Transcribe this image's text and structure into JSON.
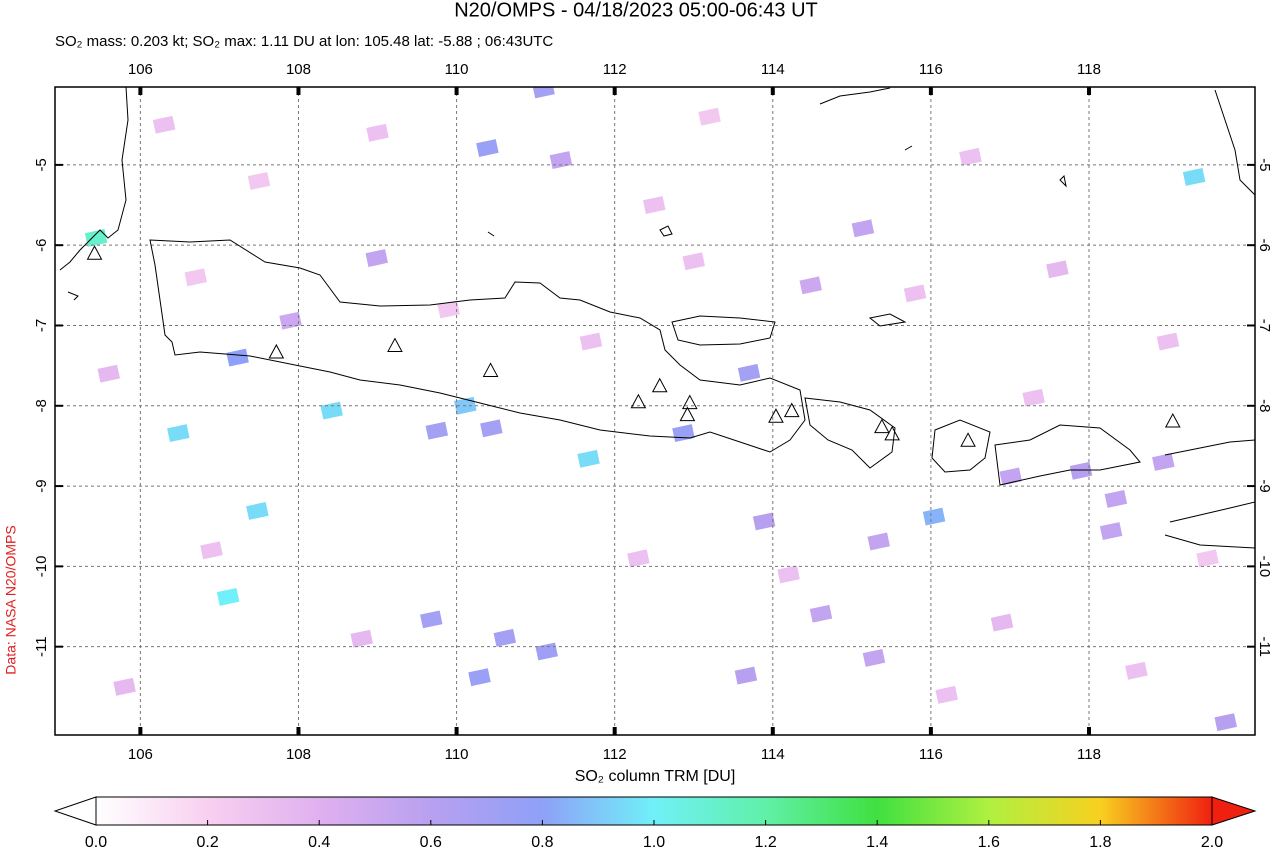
{
  "chart_data": {
    "type": "map",
    "title": "N20/OMPS - 04/18/2023 05:00-06:43 UT",
    "subtitle": "SO₂ mass: 0.203 kt; SO₂ max: 1.11 DU at lon: 105.48 lat: -5.88 ; 06:43UTC",
    "credit": "Data: NASA N20/OMPS",
    "xlim": [
      104.92,
      120.1
    ],
    "ylim": [
      -12.1,
      -4.03
    ],
    "xticks": [
      106,
      108,
      110,
      112,
      114,
      116,
      118
    ],
    "yticks": [
      -5,
      -6,
      -7,
      -8,
      -9,
      -10,
      -11
    ],
    "grid": true,
    "pixels": [
      [
        105.44,
        -5.91,
        1.11
      ],
      [
        110.39,
        -4.79,
        0.75
      ],
      [
        111.1,
        -4.06,
        0.7
      ],
      [
        119.33,
        -5.15,
        0.95
      ],
      [
        107.23,
        -7.4,
        0.8
      ],
      [
        108.42,
        -8.06,
        0.95
      ],
      [
        106.48,
        -8.34,
        0.95
      ],
      [
        110.11,
        -8.0,
        0.9
      ],
      [
        111.67,
        -8.66,
        0.95
      ],
      [
        107.48,
        -9.31,
        0.95
      ],
      [
        107.11,
        -10.38,
        1.0
      ],
      [
        116.04,
        -9.38,
        0.85
      ],
      [
        113.7,
        -7.59,
        0.7
      ],
      [
        112.87,
        -8.34,
        0.75
      ],
      [
        110.44,
        -8.28,
        0.7
      ],
      [
        109.75,
        -8.31,
        0.7
      ],
      [
        108.99,
        -6.16,
        0.55
      ],
      [
        111.32,
        -4.94,
        0.55
      ],
      [
        115.14,
        -5.79,
        0.55
      ],
      [
        114.48,
        -6.5,
        0.5
      ],
      [
        113.89,
        -9.44,
        0.6
      ],
      [
        115.34,
        -9.69,
        0.55
      ],
      [
        109.68,
        -10.66,
        0.7
      ],
      [
        110.61,
        -10.89,
        0.7
      ],
      [
        111.14,
        -11.06,
        0.72
      ],
      [
        110.29,
        -11.38,
        0.75
      ],
      [
        113.66,
        -11.36,
        0.6
      ],
      [
        114.61,
        -10.59,
        0.55
      ],
      [
        115.28,
        -11.14,
        0.55
      ],
      [
        118.28,
        -9.56,
        0.55
      ],
      [
        118.34,
        -9.16,
        0.55
      ],
      [
        119.73,
        -11.94,
        0.6
      ],
      [
        117.9,
        -8.81,
        0.6
      ],
      [
        118.94,
        -8.7,
        0.55
      ],
      [
        117.01,
        -8.88,
        0.55
      ],
      [
        107.9,
        -6.94,
        0.5
      ],
      [
        106.3,
        -4.5,
        0.3
      ],
      [
        107.5,
        -5.2,
        0.25
      ],
      [
        109.0,
        -4.6,
        0.3
      ],
      [
        112.5,
        -5.5,
        0.3
      ],
      [
        113.2,
        -4.4,
        0.25
      ],
      [
        116.5,
        -4.9,
        0.3
      ],
      [
        117.6,
        -6.3,
        0.35
      ],
      [
        119.0,
        -7.2,
        0.3
      ],
      [
        105.6,
        -7.6,
        0.35
      ],
      [
        106.9,
        -9.8,
        0.3
      ],
      [
        108.8,
        -10.9,
        0.35
      ],
      [
        112.3,
        -9.9,
        0.3
      ],
      [
        114.2,
        -10.1,
        0.3
      ],
      [
        116.9,
        -10.7,
        0.35
      ],
      [
        118.6,
        -11.3,
        0.3
      ],
      [
        119.5,
        -9.9,
        0.25
      ],
      [
        105.8,
        -11.5,
        0.35
      ],
      [
        109.9,
        -6.8,
        0.25
      ],
      [
        115.8,
        -6.6,
        0.3
      ],
      [
        117.3,
        -7.9,
        0.3
      ],
      [
        111.7,
        -7.2,
        0.3
      ],
      [
        106.7,
        -6.4,
        0.25
      ],
      [
        113.0,
        -6.2,
        0.3
      ],
      [
        116.2,
        -11.6,
        0.3
      ]
    ],
    "volcanoes": [
      [
        105.42,
        -6.1
      ],
      [
        107.72,
        -7.33
      ],
      [
        109.22,
        -7.25
      ],
      [
        110.43,
        -7.56
      ],
      [
        112.3,
        -7.95
      ],
      [
        112.57,
        -7.75
      ],
      [
        112.95,
        -7.96
      ],
      [
        112.92,
        -8.11
      ],
      [
        114.04,
        -8.13
      ],
      [
        114.24,
        -8.06
      ],
      [
        115.38,
        -8.26
      ],
      [
        115.51,
        -8.35
      ],
      [
        116.47,
        -8.43
      ],
      [
        119.06,
        -8.19
      ]
    ],
    "colorbar": {
      "label": "SO₂ column TRM [DU]",
      "lim": [
        0,
        2
      ],
      "ticks": [
        {
          "value": 0,
          "label": "0.0"
        },
        {
          "value": 0.2,
          "label": "0.2"
        },
        {
          "value": 0.4,
          "label": "0.4"
        },
        {
          "value": 0.6,
          "label": "0.6"
        },
        {
          "value": 0.8,
          "label": "0.8"
        },
        {
          "value": 1,
          "label": "1.0"
        },
        {
          "value": 1.2,
          "label": "1.2"
        },
        {
          "value": 1.4,
          "label": "1.4"
        },
        {
          "value": 1.6,
          "label": "1.6"
        },
        {
          "value": 1.8,
          "label": "1.8"
        },
        {
          "value": 2,
          "label": "2.0"
        }
      ],
      "colors": [
        "#ffffff",
        "#f8d0f0",
        "#e0b0f0",
        "#b8a0f0",
        "#8fa0f8",
        "#70f0f8",
        "#60f0a8",
        "#40e040",
        "#b0f040",
        "#f8d020",
        "#f02010"
      ]
    }
  }
}
